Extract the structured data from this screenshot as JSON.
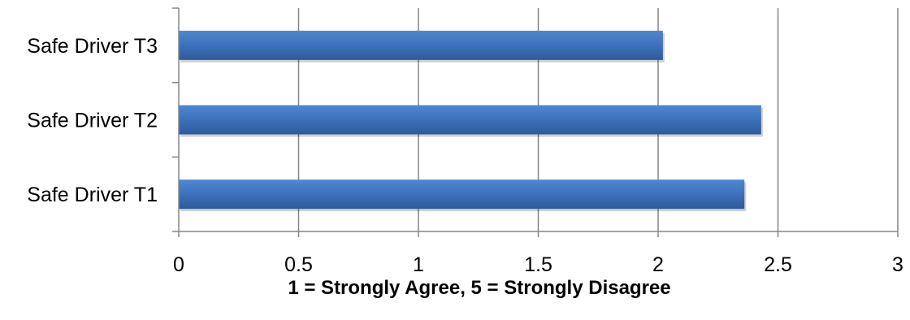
{
  "chart_data": {
    "type": "bar",
    "orientation": "horizontal",
    "categories": [
      "Safe Driver T1",
      "Safe Driver T2",
      "Safe Driver T3"
    ],
    "values": [
      2.36,
      2.43,
      2.02
    ],
    "xlabel": "1 = Strongly Agree, 5 = Strongly Disagree",
    "xlim": [
      0,
      3
    ],
    "xticks": [
      0,
      0.5,
      1,
      1.5,
      2,
      2.5,
      3
    ],
    "xtick_labels": [
      "0",
      "0.5",
      "1",
      "1.5",
      "2",
      "2.5",
      "3"
    ],
    "grid": "vertical",
    "legend": "none",
    "colors": {
      "bar_top": "#4f87d0",
      "bar_mid": "#3f73bf",
      "bar_bottom": "#2d5a9a",
      "grid": "#868686",
      "axis": "#868686"
    }
  }
}
